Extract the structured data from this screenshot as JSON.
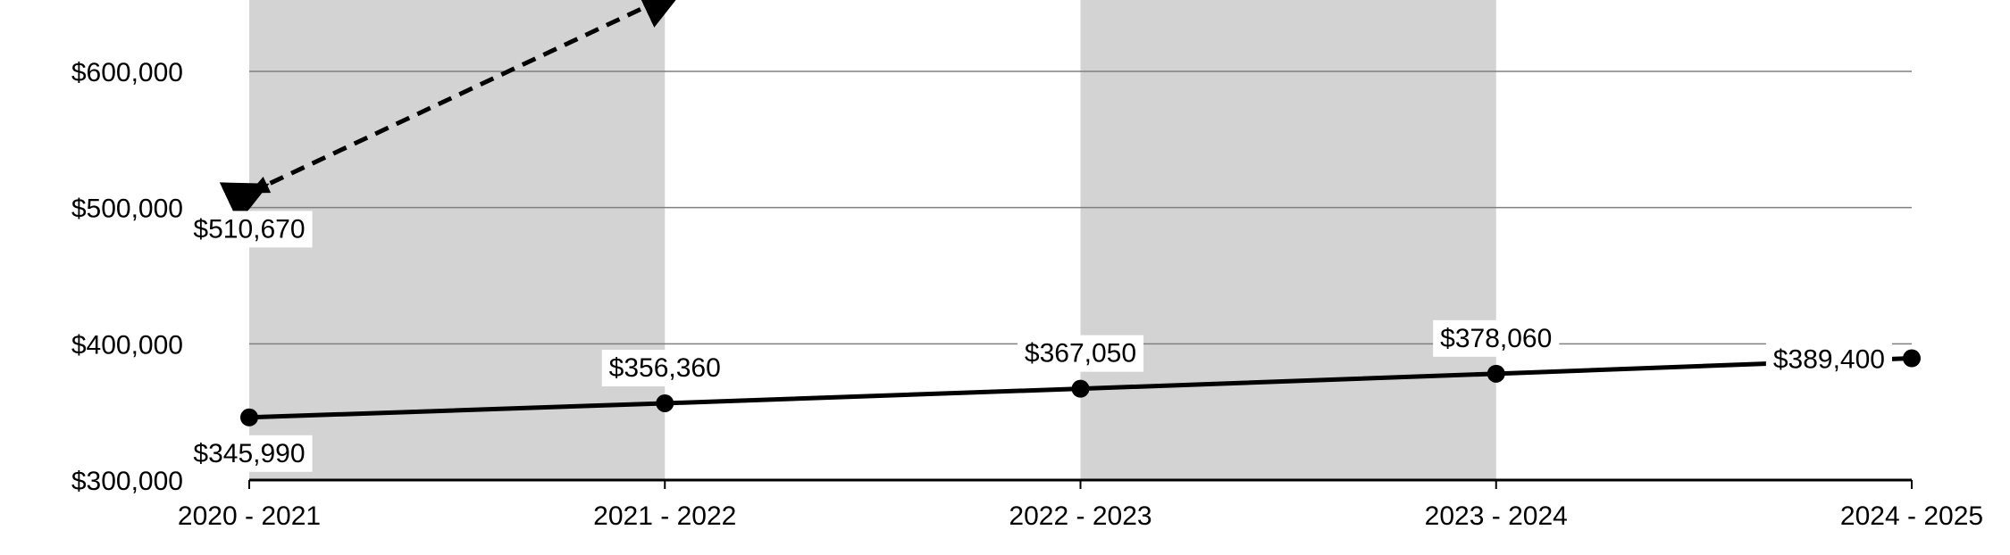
{
  "chart_data": {
    "type": "line",
    "categories": [
      "2020 - 2021",
      "2021 - 2022",
      "2022 - 2023",
      "2023 - 2024",
      "2024 - 2025"
    ],
    "series": [
      {
        "style": "solid-with-markers",
        "color": "#000000",
        "values": [
          345990,
          356360,
          367050,
          378060,
          389400
        ],
        "labels": [
          "$345,990",
          "$356,360",
          "$367,050",
          "$378,060",
          "$389,400"
        ]
      },
      {
        "style": "dashed-arrow",
        "color": "#000000",
        "points": [
          {
            "category": "2020 - 2021",
            "value": 510670,
            "label": "$510,670"
          },
          {
            "category": "2021 - 2022",
            "value": 654000,
            "label": ""
          }
        ]
      }
    ],
    "y_ticks": [
      300000,
      400000,
      500000,
      600000
    ],
    "y_tick_labels": [
      "$300,000",
      "$400,000",
      "$500,000",
      "$600,000"
    ],
    "ylim": [
      300000,
      652000
    ],
    "grid": true,
    "shaded_band_color": "#d3d3d3",
    "shaded_categories": [
      "2020 - 2021",
      "2022 - 2023"
    ],
    "xlabel": "",
    "ylabel": "",
    "title": ""
  }
}
